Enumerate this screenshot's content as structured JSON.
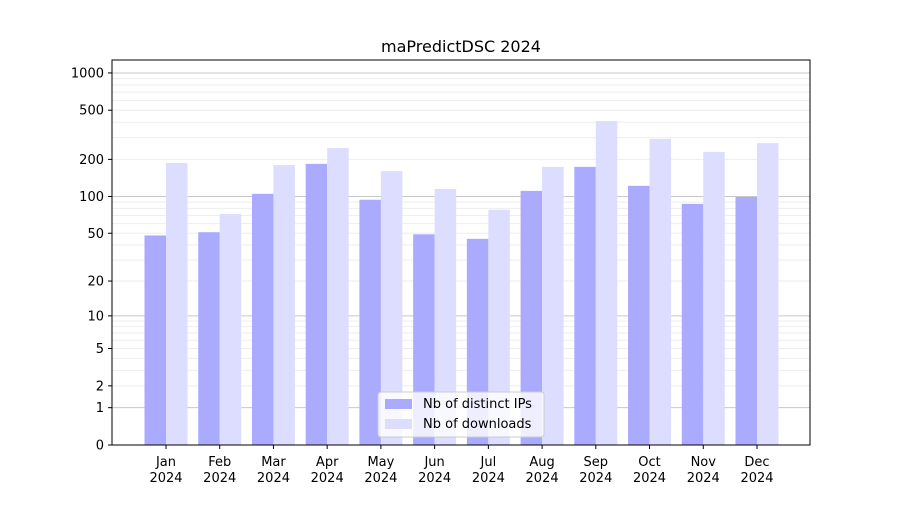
{
  "chart_data": {
    "type": "bar",
    "title": "maPredictDSC 2024",
    "xlabel": "",
    "ylabel": "",
    "yscale": "log(1+x)",
    "ylim": [
      0,
      1200
    ],
    "yticks": [
      0,
      1,
      2,
      5,
      10,
      20,
      50,
      100,
      200,
      500,
      1000
    ],
    "grid": true,
    "legend_position": "bottom-center",
    "categories": [
      "Jan\n2024",
      "Feb\n2024",
      "Mar\n2024",
      "Apr\n2024",
      "May\n2024",
      "Jun\n2024",
      "Jul\n2024",
      "Aug\n2024",
      "Sep\n2024",
      "Oct\n2024",
      "Nov\n2024",
      "Dec\n2024"
    ],
    "series": [
      {
        "name": "Nb of distinct IPs",
        "color": "#aaaaff",
        "values": [
          48,
          51,
          105,
          184,
          94,
          49,
          45,
          111,
          174,
          122,
          87,
          99
        ]
      },
      {
        "name": "Nb of downloads",
        "color": "#ddddff",
        "values": [
          187,
          72,
          180,
          247,
          161,
          115,
          78,
          174,
          409,
          293,
          230,
          271
        ]
      }
    ]
  }
}
